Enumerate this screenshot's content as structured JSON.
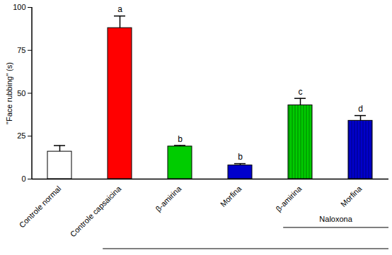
{
  "chart_data": {
    "type": "bar",
    "categories": [
      "Controle normal",
      "Controle capsaicina",
      "β-amirina",
      "Morfina",
      "β-amirina",
      "Morfina"
    ],
    "values": [
      16,
      88,
      19,
      8,
      43,
      34
    ],
    "errors": [
      3.5,
      7,
      0.6,
      1,
      4,
      3
    ],
    "colors": [
      "#ffffff",
      "#ff0000",
      "#00cc00",
      "#0000cc",
      "#00cc00",
      "#0000cc"
    ],
    "letters": [
      null,
      "a",
      "b",
      "b",
      "c",
      "d"
    ],
    "y_label": "\"Face rubbing\" (s)",
    "ylim": [
      0,
      100
    ],
    "yticks": [
      0,
      25,
      50,
      75,
      100
    ],
    "groups": [
      {
        "label": null,
        "start": 1,
        "end": 5
      },
      {
        "label": "Naloxona",
        "start": 4,
        "end": 5
      }
    ]
  }
}
